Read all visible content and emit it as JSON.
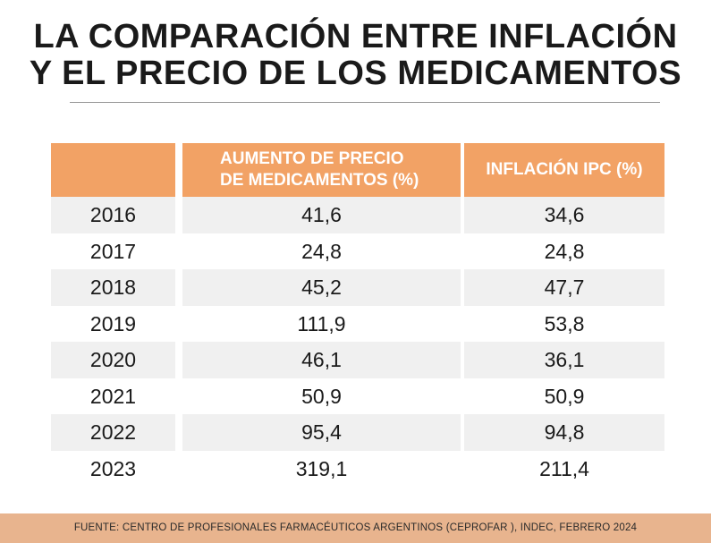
{
  "title_line1": "LA COMPARACIÓN ENTRE INFLACIÓN",
  "title_line2": "Y EL PRECIO DE LOS MEDICAMENTOS",
  "footer": "FUENTE:  CENTRO DE PROFESIONALES FARMACÉUTICOS ARGENTINOS (CEPROFAR ), INDEC, FEBRERO 2024",
  "colors": {
    "header_bg": "#f2a265",
    "stripe": "#f0f0f0",
    "footer_bg": "#e8b48e"
  },
  "chart_data": {
    "type": "table",
    "title": "LA COMPARACIÓN ENTRE INFLACIÓN Y EL PRECIO DE LOS MEDICAMENTOS",
    "columns": [
      "",
      "AUMENTO DE PRECIO DE MEDICAMENTOS (%)",
      "INFLACIÓN IPC (%)"
    ],
    "header_medicamentos_line1": "AUMENTO DE PRECIO",
    "header_medicamentos_line2": "DE MEDICAMENTOS (%)",
    "header_ipc": "INFLACIÓN IPC (%)",
    "rows": [
      {
        "year": "2016",
        "medicamentos": "41,6",
        "ipc": "34,6"
      },
      {
        "year": "2017",
        "medicamentos": "24,8",
        "ipc": "24,8"
      },
      {
        "year": "2018",
        "medicamentos": "45,2",
        "ipc": "47,7"
      },
      {
        "year": "2019",
        "medicamentos": "111,9",
        "ipc": "53,8"
      },
      {
        "year": "2020",
        "medicamentos": "46,1",
        "ipc": "36,1"
      },
      {
        "year": "2021",
        "medicamentos": "50,9",
        "ipc": "50,9"
      },
      {
        "year": "2022",
        "medicamentos": "95,4",
        "ipc": "94,8"
      },
      {
        "year": "2023",
        "medicamentos": "319,1",
        "ipc": "211,4"
      }
    ]
  }
}
